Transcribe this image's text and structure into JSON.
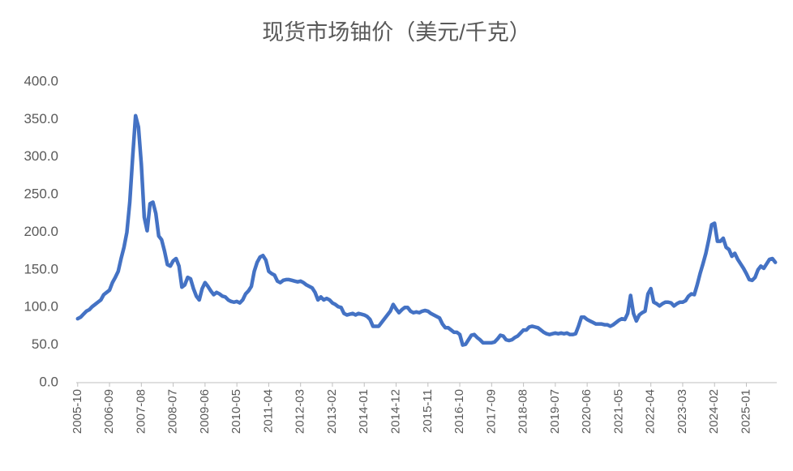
{
  "chart_data": {
    "type": "line",
    "title": "现货市场铀价（美元/千克）",
    "categories": [
      "2005-10",
      null,
      null,
      null,
      null,
      null,
      null,
      null,
      null,
      null,
      null,
      "2006-09",
      null,
      null,
      null,
      null,
      null,
      null,
      null,
      null,
      null,
      null,
      "2007-08",
      null,
      null,
      null,
      null,
      null,
      null,
      null,
      null,
      null,
      null,
      "2008-07",
      null,
      null,
      null,
      null,
      null,
      null,
      null,
      null,
      null,
      null,
      "2009-06",
      null,
      null,
      null,
      null,
      null,
      null,
      null,
      null,
      null,
      null,
      "2010-05",
      null,
      null,
      null,
      null,
      null,
      null,
      null,
      null,
      null,
      null,
      "2011-04",
      null,
      null,
      null,
      null,
      null,
      null,
      null,
      null,
      null,
      null,
      "2012-03",
      null,
      null,
      null,
      null,
      null,
      null,
      null,
      null,
      null,
      null,
      "2013-02",
      null,
      null,
      null,
      null,
      null,
      null,
      null,
      null,
      null,
      null,
      "2014-01",
      null,
      null,
      null,
      null,
      null,
      null,
      null,
      null,
      null,
      null,
      "2014-12",
      null,
      null,
      null,
      null,
      null,
      null,
      null,
      null,
      null,
      null,
      "2015-11",
      null,
      null,
      null,
      null,
      null,
      null,
      null,
      null,
      null,
      null,
      "2016-10",
      null,
      null,
      null,
      null,
      null,
      null,
      null,
      null,
      null,
      null,
      "2017-09",
      null,
      null,
      null,
      null,
      null,
      null,
      null,
      null,
      null,
      null,
      "2018-08",
      null,
      null,
      null,
      null,
      null,
      null,
      null,
      null,
      null,
      null,
      "2019-07",
      null,
      null,
      null,
      null,
      null,
      null,
      null,
      null,
      null,
      null,
      "2020-06",
      null,
      null,
      null,
      null,
      null,
      null,
      null,
      null,
      null,
      null,
      "2021-05",
      null,
      null,
      null,
      null,
      null,
      null,
      null,
      null,
      null,
      null,
      "2022-04",
      null,
      null,
      null,
      null,
      null,
      null,
      null,
      null,
      null,
      null,
      "2023-03",
      null,
      null,
      null,
      null,
      null,
      null,
      null,
      null,
      null,
      null,
      "2024-02",
      null,
      null,
      null,
      null,
      null,
      null,
      null,
      null,
      null,
      null,
      "2025-01",
      null,
      null,
      null,
      null,
      null,
      null,
      null,
      null,
      null,
      null
    ],
    "values": [
      85,
      87,
      91,
      95,
      97,
      101,
      104,
      107,
      110,
      117,
      120,
      123,
      133,
      140,
      148,
      165,
      180,
      200,
      240,
      300,
      355,
      340,
      290,
      220,
      202,
      238,
      240,
      225,
      195,
      190,
      175,
      157,
      155,
      162,
      165,
      155,
      127,
      130,
      140,
      138,
      125,
      115,
      110,
      125,
      133,
      128,
      122,
      117,
      120,
      118,
      115,
      114,
      110,
      108,
      107,
      108,
      106,
      110,
      118,
      122,
      128,
      148,
      160,
      167,
      169,
      163,
      148,
      145,
      143,
      135,
      133,
      136,
      137,
      137,
      136,
      135,
      134,
      135,
      133,
      130,
      128,
      126,
      120,
      110,
      114,
      110,
      112,
      110,
      106,
      104,
      101,
      100,
      92,
      90,
      91,
      92,
      90,
      92,
      91,
      90,
      88,
      84,
      75,
      75,
      75,
      80,
      85,
      90,
      95,
      104,
      98,
      93,
      97,
      100,
      100,
      95,
      93,
      94,
      93,
      95,
      96,
      95,
      92,
      90,
      88,
      86,
      78,
      73,
      73,
      70,
      67,
      67,
      64,
      50,
      51,
      57,
      63,
      64,
      60,
      57,
      53,
      53,
      53,
      53,
      54,
      58,
      63,
      62,
      57,
      56,
      57,
      60,
      62,
      66,
      70,
      70,
      74,
      75,
      74,
      73,
      70,
      67,
      65,
      64,
      65,
      66,
      65,
      66,
      65,
      66,
      64,
      64,
      65,
      75,
      87,
      87,
      84,
      82,
      80,
      78,
      78,
      78,
      77,
      77,
      75,
      77,
      80,
      83,
      85,
      84,
      92,
      116,
      92,
      82,
      90,
      93,
      95,
      118,
      125,
      107,
      105,
      102,
      105,
      107,
      107,
      106,
      102,
      105,
      107,
      107,
      109,
      115,
      118,
      117,
      130,
      145,
      158,
      172,
      190,
      210,
      212,
      188,
      188,
      192,
      180,
      177,
      168,
      172,
      164,
      158,
      152,
      145,
      137,
      136,
      140,
      150,
      155,
      152,
      158,
      164,
      165,
      160
    ],
    "color": "#4472c4",
    "ylim": [
      0,
      400
    ],
    "yticks": [
      {
        "value": 0,
        "label": "0.0"
      },
      {
        "value": 50,
        "label": "50.0"
      },
      {
        "value": 100,
        "label": "100.0"
      },
      {
        "value": 150,
        "label": "150.0"
      },
      {
        "value": 200,
        "label": "200.0"
      },
      {
        "value": 250,
        "label": "250.0"
      },
      {
        "value": 300,
        "label": "300.0"
      },
      {
        "value": 350,
        "label": "350.0"
      },
      {
        "value": 400,
        "label": "400.0"
      }
    ],
    "grid": false
  }
}
